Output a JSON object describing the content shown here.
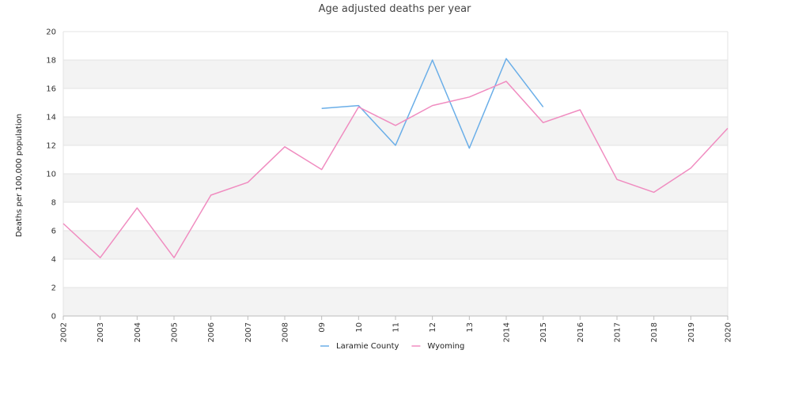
{
  "chart_data": {
    "type": "line",
    "title": "Age adjusted deaths per year",
    "xlabel": "",
    "ylabel": "Deaths per 100,000 population",
    "categories": [
      "2002",
      "2003",
      "2004",
      "2005",
      "2006",
      "2007",
      "2008",
      "09",
      "10",
      "11",
      "12",
      "13",
      "2014",
      "2015",
      "2016",
      "2017",
      "2018",
      "2019",
      "2020"
    ],
    "ylim": [
      0,
      20
    ],
    "yticks": [
      0,
      2,
      4,
      6,
      8,
      10,
      12,
      14,
      16,
      18,
      20
    ],
    "grid": "horizontal-bands",
    "legend_position": "bottom",
    "series": [
      {
        "name": "Laramie County",
        "color": "#6aaee8",
        "values": [
          null,
          null,
          null,
          null,
          null,
          null,
          null,
          14.6,
          14.8,
          12.0,
          18.0,
          11.8,
          18.1,
          14.7,
          null,
          null,
          null,
          null,
          null
        ]
      },
      {
        "name": "Wyoming",
        "color": "#f08cc0",
        "values": [
          6.5,
          4.1,
          7.6,
          4.1,
          8.5,
          9.4,
          11.9,
          10.3,
          14.7,
          13.4,
          14.8,
          15.4,
          16.5,
          13.6,
          14.5,
          9.6,
          8.7,
          10.4,
          13.2
        ]
      }
    ]
  }
}
